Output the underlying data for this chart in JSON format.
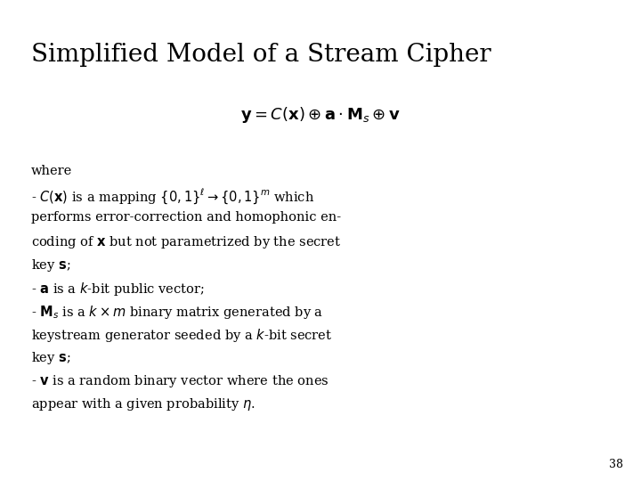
{
  "title": "Simplified Model of a Stream Cipher",
  "slide_number": "38",
  "background_color": "#ffffff",
  "text_color": "#000000",
  "title_fontsize": 20,
  "body_fontsize": 10.5,
  "eq_fontsize": 13,
  "slide_number_fontsize": 9
}
